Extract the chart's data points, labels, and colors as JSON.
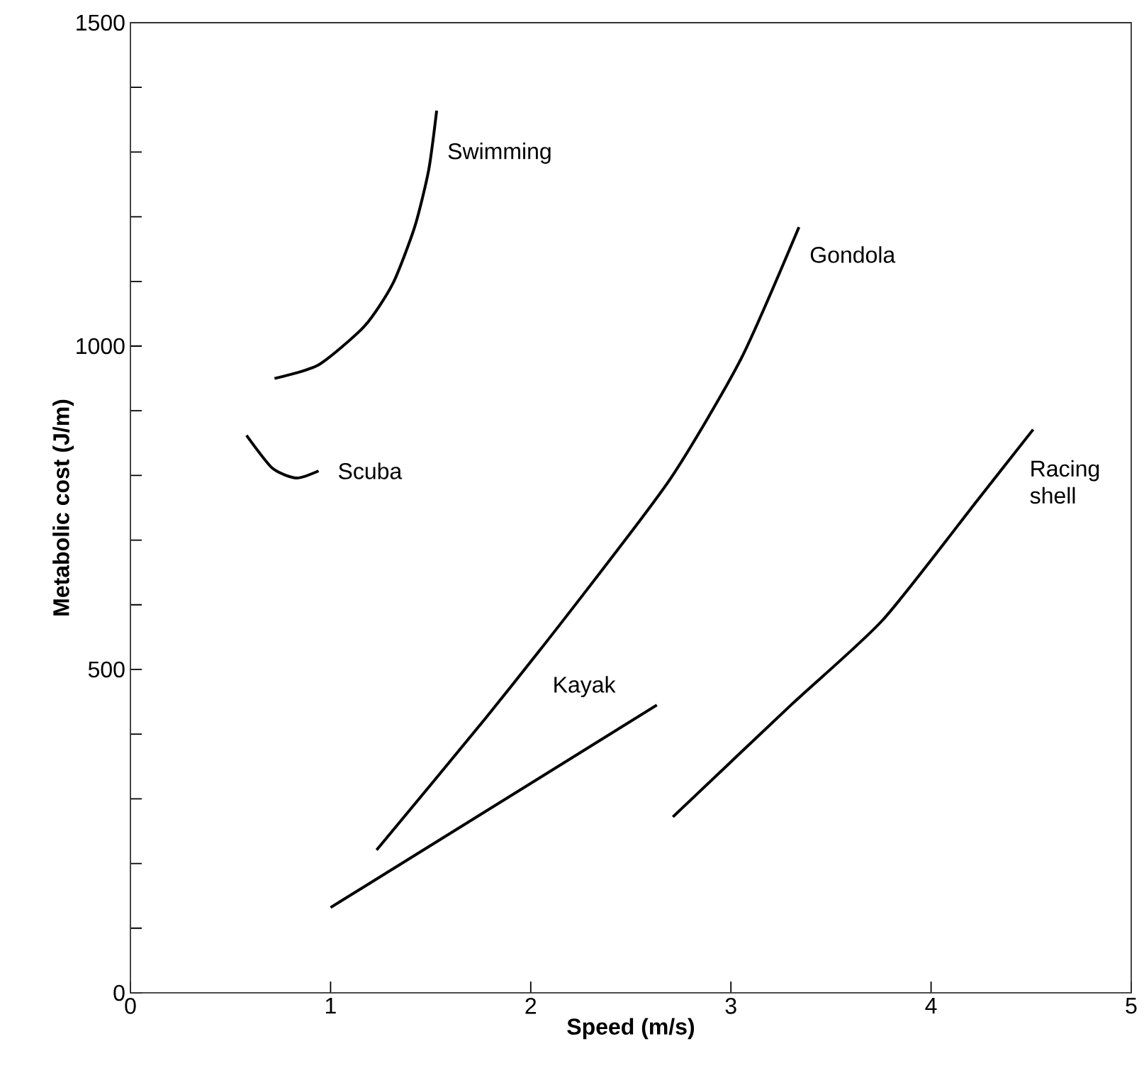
{
  "chart_data": {
    "type": "line",
    "xlabel": "Speed (m/s)",
    "ylabel": "Metabolic cost (J/m)",
    "xlim": [
      0,
      5
    ],
    "ylim": [
      0,
      1500
    ],
    "xticks": [
      0,
      1,
      2,
      3,
      4,
      5
    ],
    "yticks": [
      0,
      {
        "value": 100,
        "label": null
      },
      {
        "value": 200,
        "label": null
      },
      {
        "value": 300,
        "label": null
      },
      {
        "value": 400,
        "label": null
      },
      500,
      {
        "value": 600,
        "label": null
      },
      {
        "value": 700,
        "label": null
      },
      {
        "value": 800,
        "label": null
      },
      {
        "value": 900,
        "label": null
      },
      1000,
      {
        "value": 1100,
        "label": null
      },
      {
        "value": 1200,
        "label": null
      },
      {
        "value": 1300,
        "label": null
      },
      {
        "value": 1400,
        "label": null
      },
      1500
    ],
    "grid": false,
    "legend": false,
    "marker": "none",
    "line_style": "solid",
    "series": [
      {
        "name": "Swimming",
        "color": "#000000",
        "x": [
          0.72,
          0.94,
          1.17,
          1.31,
          1.42,
          1.49,
          1.53
        ],
        "values": [
          950,
          971,
          1031,
          1096,
          1184,
          1272,
          1364
        ]
      },
      {
        "name": "Scuba",
        "color": "#000000",
        "x": [
          0.58,
          0.71,
          0.83,
          0.94
        ],
        "values": [
          862,
          811,
          796,
          807
        ]
      },
      {
        "name": "Gondola",
        "color": "#000000",
        "x": [
          1.23,
          1.77,
          2.24,
          2.7,
          3.05,
          3.34
        ],
        "values": [
          221,
          423,
          607,
          796,
          980,
          1184
        ]
      },
      {
        "name": "Kayak",
        "color": "#000000",
        "x": [
          1.0,
          2.63
        ],
        "values": [
          132,
          445
        ]
      },
      {
        "name": "Racing shell",
        "color": "#000000",
        "x": [
          2.71,
          3.3,
          3.76,
          4.23,
          4.51
        ],
        "values": [
          272,
          445,
          577,
          761,
          871
        ]
      }
    ]
  }
}
